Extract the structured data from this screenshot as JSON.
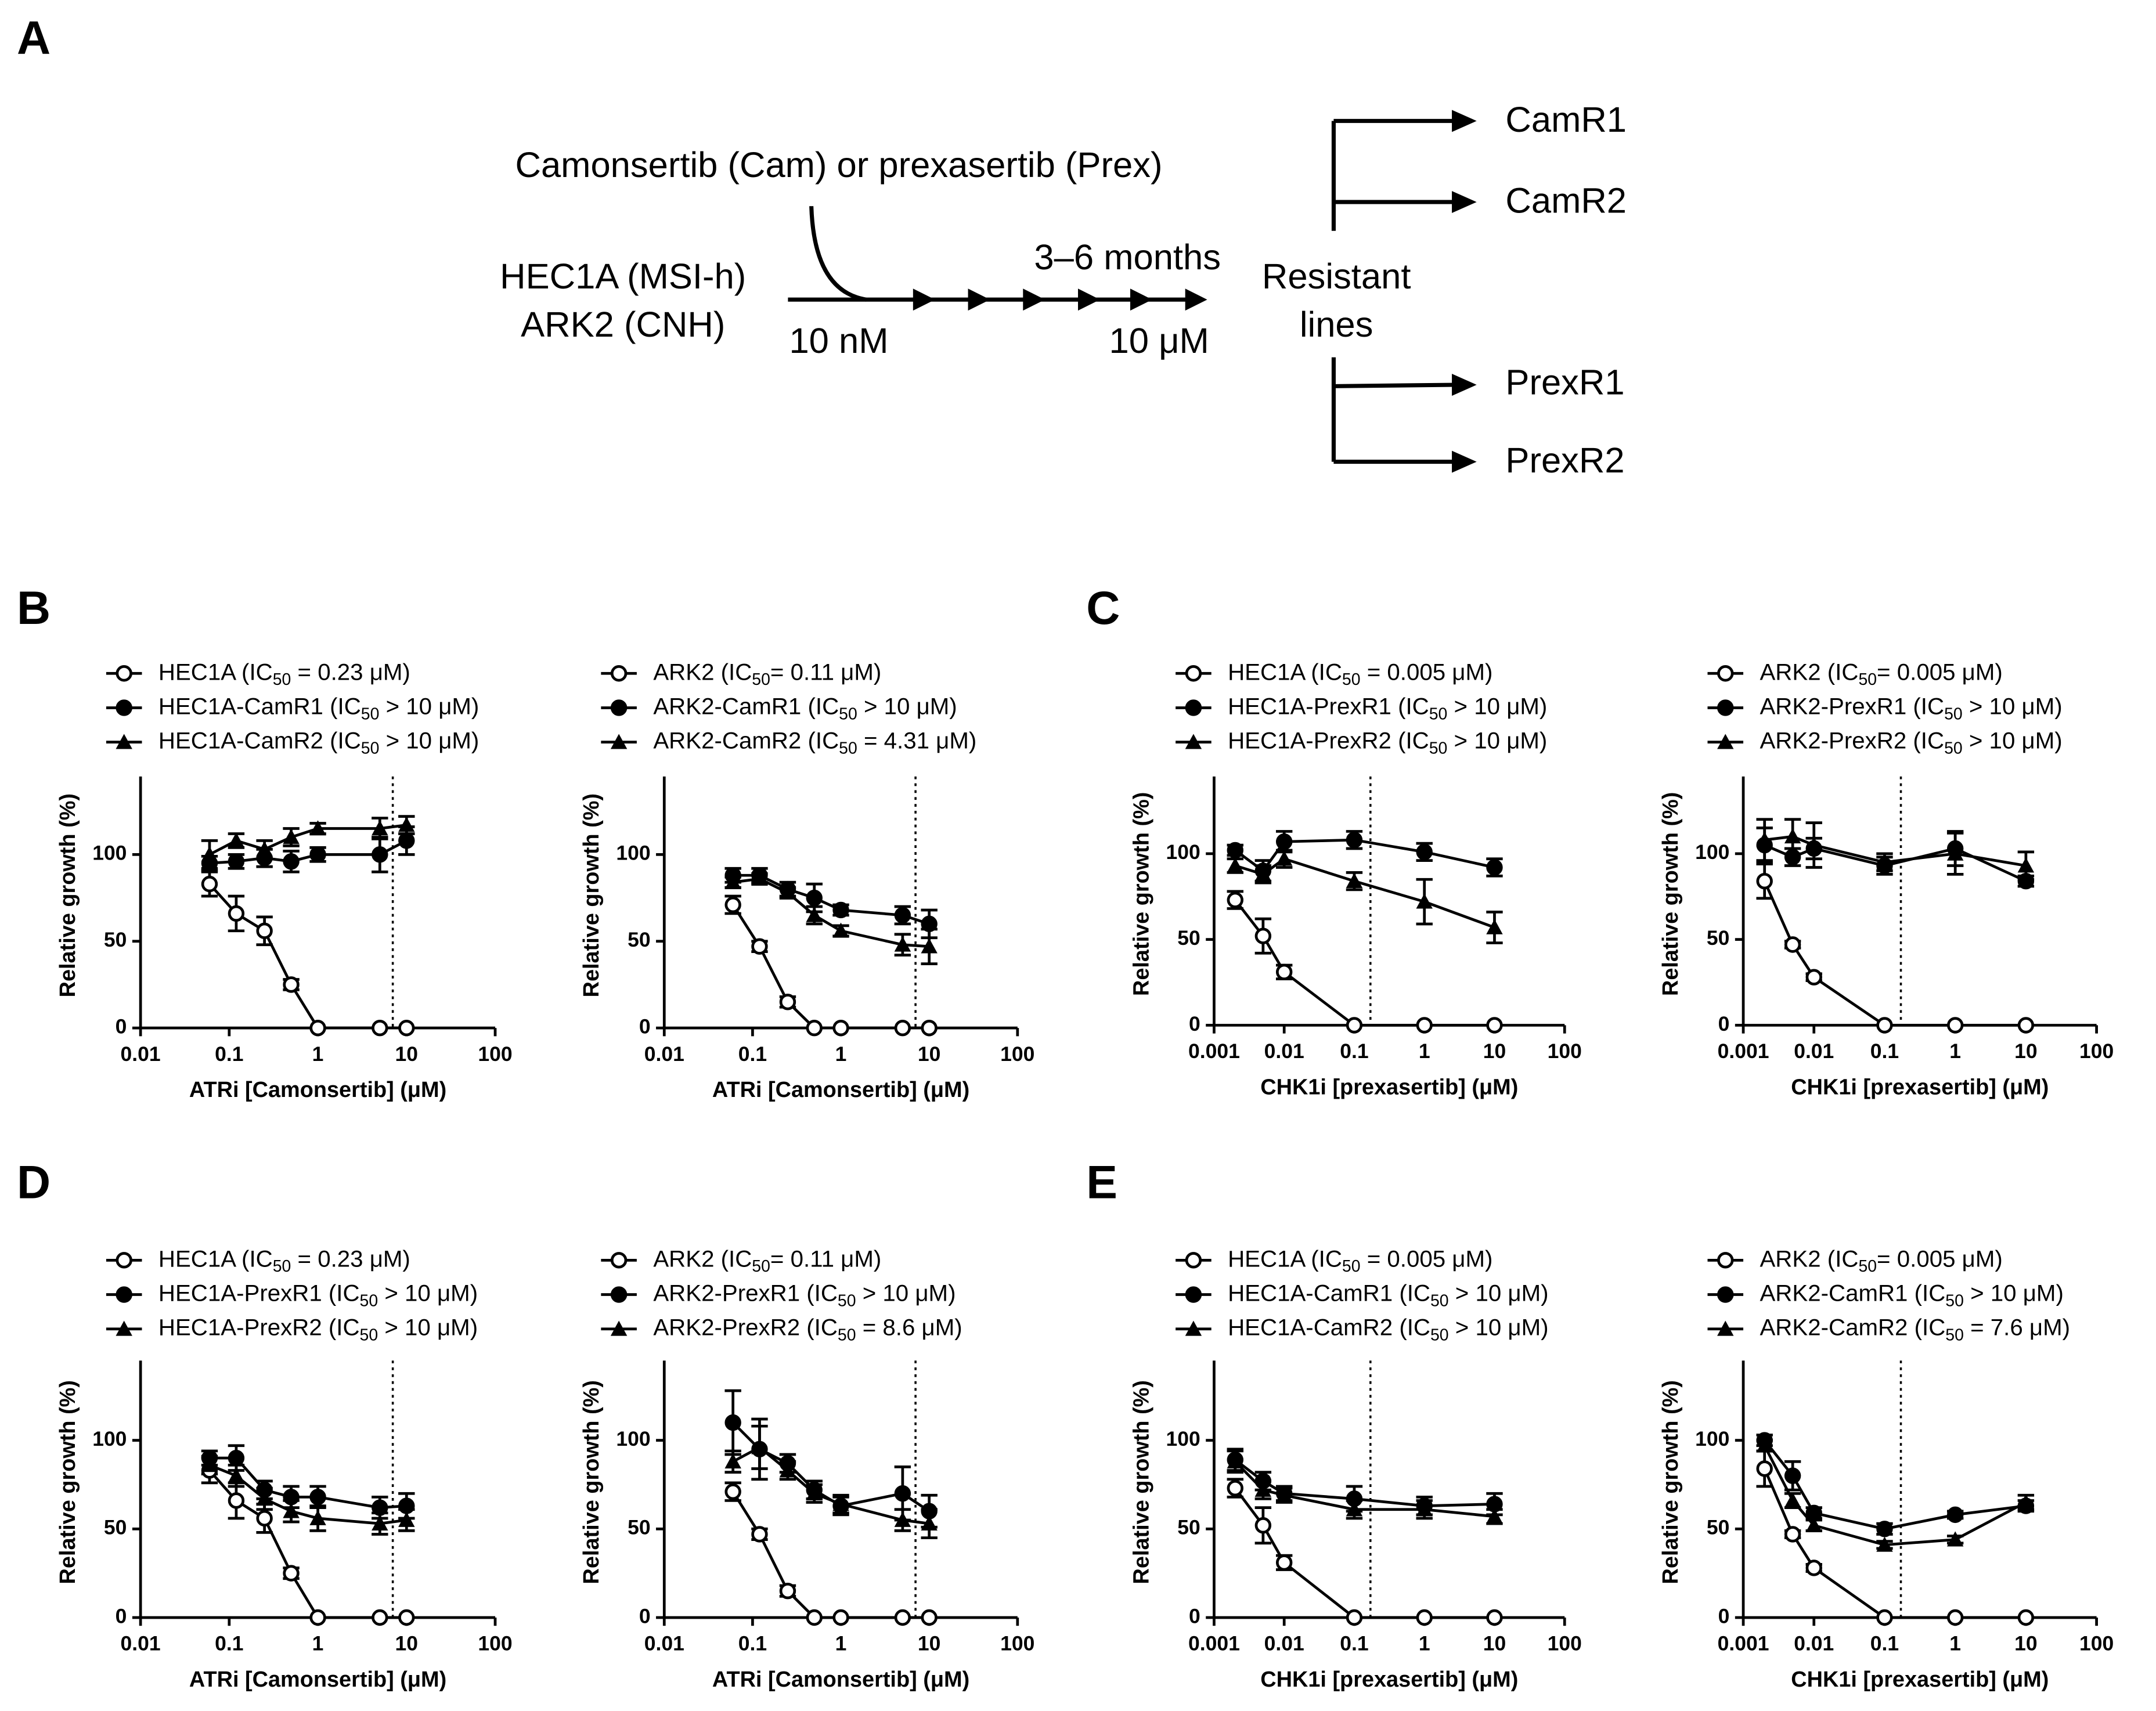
{
  "panel_labels": [
    "A",
    "B",
    "C",
    "D",
    "E"
  ],
  "diagram": {
    "treatment": "Camonsertib (Cam) or prexasertib (Prex)",
    "parental_lines": [
      "HEC1A (MSI-h)",
      "ARK2 (CNH)"
    ],
    "start_dose": "10 nM",
    "duration": "3–6 months",
    "end_dose": "10 μM",
    "outcome": [
      "Resistant",
      "lines"
    ],
    "resistant_lines": [
      "CamR1",
      "CamR2",
      "PrexR1",
      "PrexR2"
    ]
  },
  "chart_data": [
    {
      "type": "line",
      "x_label": "ATRi [Camonsertib] (μM)",
      "y_label": "Relative growth (%)",
      "log_x": true,
      "xlim": [
        0.01,
        100
      ],
      "xticks": [
        0.01,
        0.1,
        1,
        10,
        100
      ],
      "ylim": [
        0,
        145
      ],
      "yticks": [
        0,
        50,
        100
      ],
      "vline": 7,
      "x": [
        0.06,
        0.12,
        0.25,
        0.5,
        1,
        5,
        10
      ],
      "series": [
        {
          "name": "HEC1A (IC50 = 0.23 μM)",
          "marker": "open-circle",
          "color": "#000000",
          "values": [
            83,
            66,
            56,
            25,
            0,
            0,
            0
          ],
          "errors": [
            7,
            10,
            8,
            3,
            0,
            0,
            0
          ]
        },
        {
          "name": "HEC1A-CamR1 (IC50  > 10 μM)",
          "marker": "filled-circle",
          "color": "#000000",
          "values": [
            95,
            96,
            98,
            96,
            100,
            100,
            108
          ],
          "errors": [
            4,
            4,
            5,
            6,
            4,
            10,
            8
          ]
        },
        {
          "name": "HEC1A-CamR2 (IC50  > 10 μM)",
          "marker": "filled-triangle",
          "color": "#000000",
          "values": [
            100,
            108,
            103,
            110,
            115,
            115,
            117
          ],
          "errors": [
            8,
            4,
            5,
            5,
            3,
            6,
            5
          ]
        }
      ]
    },
    {
      "type": "line",
      "x_label": "ATRi [Camonsertib] (μM)",
      "y_label": "Relative growth (%)",
      "log_x": true,
      "xlim": [
        0.01,
        100
      ],
      "xticks": [
        0.01,
        0.1,
        1,
        10,
        100
      ],
      "ylim": [
        0,
        145
      ],
      "yticks": [
        0,
        50,
        100
      ],
      "vline": 7,
      "x": [
        0.06,
        0.12,
        0.25,
        0.5,
        1,
        5,
        10
      ],
      "series": [
        {
          "name": "ARK2 (IC50= 0.11 μM)",
          "marker": "open-circle",
          "color": "#000000",
          "values": [
            71,
            47,
            15,
            0,
            0,
            0,
            0
          ],
          "errors": [
            5,
            3,
            3,
            0,
            0,
            0,
            0
          ]
        },
        {
          "name": "ARK2-CamR1 (IC50  > 10 μM)",
          "marker": "filled-circle",
          "color": "#000000",
          "values": [
            88,
            88,
            80,
            75,
            68,
            65,
            60
          ],
          "errors": [
            4,
            4,
            4,
            8,
            3,
            5,
            8
          ]
        },
        {
          "name": "ARK2-CamR2 (IC50  =  4.31 μM)",
          "marker": "filled-triangle",
          "color": "#000000",
          "values": [
            84,
            86,
            78,
            65,
            56,
            48,
            47
          ],
          "errors": [
            3,
            3,
            3,
            5,
            3,
            6,
            10
          ]
        }
      ]
    },
    {
      "type": "line",
      "x_label": "CHK1i [prexasertib] (μM)",
      "y_label": "Relative growth (%)",
      "log_x": true,
      "xlim": [
        0.001,
        100
      ],
      "xticks": [
        0.001,
        0.01,
        0.1,
        1,
        10,
        100
      ],
      "ylim": [
        0,
        145
      ],
      "yticks": [
        0,
        50,
        100
      ],
      "vline": 0.17,
      "x": [
        0.002,
        0.005,
        0.01,
        0.1,
        1,
        10
      ],
      "series": [
        {
          "name": "HEC1A (IC50 = 0.005 μM)",
          "marker": "open-circle",
          "color": "#000000",
          "values": [
            73,
            52,
            31,
            0,
            0,
            0
          ],
          "errors": [
            5,
            10,
            4,
            0,
            0,
            0
          ]
        },
        {
          "name": "HEC1A-PrexR1 (IC50  > 10 μM)",
          "marker": "filled-circle",
          "color": "#000000",
          "values": [
            102,
            90,
            107,
            108,
            101,
            92
          ],
          "errors": [
            3,
            6,
            6,
            5,
            5,
            5
          ]
        },
        {
          "name": "HEC1A-PrexR2 (IC50  > 10 μM)",
          "marker": "filled-triangle",
          "color": "#000000",
          "values": [
            93,
            88,
            97,
            84,
            72,
            57
          ],
          "errors": [
            4,
            5,
            5,
            5,
            13,
            9
          ]
        }
      ]
    },
    {
      "type": "line",
      "x_label": "CHK1i [prexasertib] (μM)",
      "y_label": "Relative growth (%)",
      "log_x": true,
      "xlim": [
        0.001,
        100
      ],
      "xticks": [
        0.001,
        0.01,
        0.1,
        1,
        10,
        100
      ],
      "ylim": [
        0,
        145
      ],
      "yticks": [
        0,
        50,
        100
      ],
      "vline": 0.17,
      "x": [
        0.002,
        0.005,
        0.01,
        0.1,
        1,
        10
      ],
      "series": [
        {
          "name": "ARK2 (IC50= 0.005 μM)",
          "marker": "open-circle",
          "color": "#000000",
          "values": [
            84,
            47,
            28,
            0,
            0,
            0
          ],
          "errors": [
            10,
            2,
            2,
            0,
            0,
            0
          ]
        },
        {
          "name": "ARK2-PrexR1 (IC50  > 10 μM)",
          "marker": "filled-circle",
          "color": "#000000",
          "values": [
            105,
            98,
            103,
            93,
            103,
            84
          ],
          "errors": [
            10,
            5,
            6,
            5,
            10,
            3
          ]
        },
        {
          "name": "ARK2-PrexR2 (IC50  > 10 μM)",
          "marker": "filled-triangle",
          "color": "#000000",
          "values": [
            108,
            110,
            105,
            95,
            100,
            93
          ],
          "errors": [
            12,
            10,
            13,
            5,
            12,
            8
          ]
        }
      ]
    },
    {
      "type": "line",
      "x_label": "ATRi [Camonsertib] (μM)",
      "y_label": "Relative growth (%)",
      "log_x": true,
      "xlim": [
        0.01,
        100
      ],
      "xticks": [
        0.01,
        0.1,
        1,
        10,
        100
      ],
      "ylim": [
        0,
        145
      ],
      "yticks": [
        0,
        50,
        100
      ],
      "vline": 7,
      "x": [
        0.06,
        0.12,
        0.25,
        0.5,
        1,
        5,
        10
      ],
      "series": [
        {
          "name": "HEC1A (IC50 = 0.23 μM)",
          "marker": "open-circle",
          "color": "#000000",
          "values": [
            83,
            66,
            56,
            25,
            0,
            0,
            0
          ],
          "errors": [
            7,
            10,
            8,
            3,
            0,
            0,
            0
          ]
        },
        {
          "name": "HEC1A-PrexR1 (IC50  > 10 μM)",
          "marker": "filled-circle",
          "color": "#000000",
          "values": [
            90,
            90,
            72,
            68,
            68,
            62,
            63
          ],
          "errors": [
            4,
            7,
            5,
            6,
            6,
            6,
            7
          ]
        },
        {
          "name": "HEC1A-PrexR2 (IC50  > 10 μM)",
          "marker": "filled-triangle",
          "color": "#000000",
          "values": [
            86,
            80,
            67,
            60,
            56,
            53,
            55
          ],
          "errors": [
            5,
            6,
            6,
            6,
            7,
            6,
            6
          ]
        }
      ]
    },
    {
      "type": "line",
      "x_label": "ATRi [Camonsertib] (μM)",
      "y_label": "Relative growth (%)",
      "log_x": true,
      "xlim": [
        0.01,
        100
      ],
      "xticks": [
        0.01,
        0.1,
        1,
        10,
        100
      ],
      "ylim": [
        0,
        145
      ],
      "yticks": [
        0,
        50,
        100
      ],
      "vline": 7,
      "x": [
        0.06,
        0.12,
        0.25,
        0.5,
        1,
        5,
        10
      ],
      "series": [
        {
          "name": "ARK2 (IC50= 0.11 μM)",
          "marker": "open-circle",
          "color": "#000000",
          "values": [
            71,
            47,
            15,
            0,
            0,
            0,
            0
          ],
          "errors": [
            5,
            3,
            3,
            0,
            0,
            0,
            0
          ]
        },
        {
          "name": "ARK2-PrexR1 (IC50 > 10 μM)",
          "marker": "filled-circle",
          "color": "#000000",
          "values": [
            110,
            95,
            87,
            72,
            63,
            70,
            60
          ],
          "errors": [
            18,
            17,
            5,
            5,
            5,
            15,
            9
          ]
        },
        {
          "name": "ARK2-PrexR2 (IC50  = 8.6 μM)",
          "marker": "filled-triangle",
          "color": "#000000",
          "values": [
            88,
            96,
            83,
            70,
            64,
            55,
            53
          ],
          "errors": [
            6,
            12,
            5,
            5,
            5,
            6,
            8
          ]
        }
      ]
    },
    {
      "type": "line",
      "x_label": "CHK1i [prexasertib] (μM)",
      "y_label": "Relative growth (%)",
      "log_x": true,
      "xlim": [
        0.001,
        100
      ],
      "xticks": [
        0.001,
        0.01,
        0.1,
        1,
        10,
        100
      ],
      "ylim": [
        0,
        145
      ],
      "yticks": [
        0,
        50,
        100
      ],
      "vline": 0.17,
      "x": [
        0.002,
        0.005,
        0.01,
        0.1,
        1,
        10
      ],
      "series": [
        {
          "name": "HEC1A (IC50 = 0.005 μM)",
          "marker": "open-circle",
          "color": "#000000",
          "values": [
            73,
            52,
            31,
            0,
            0,
            0
          ],
          "errors": [
            5,
            10,
            4,
            0,
            0,
            0
          ]
        },
        {
          "name": "HEC1A-CamR1 (IC50  > 10 μM)",
          "marker": "filled-circle",
          "color": "#000000",
          "values": [
            89,
            77,
            70,
            67,
            63,
            64
          ],
          "errors": [
            6,
            5,
            4,
            7,
            5,
            6
          ]
        },
        {
          "name": "HEC1A-CamR2 (IC50  > 10 μM)",
          "marker": "filled-triangle",
          "color": "#000000",
          "values": [
            88,
            72,
            69,
            61,
            61,
            57
          ],
          "errors": [
            6,
            5,
            4,
            5,
            5,
            4
          ]
        }
      ]
    },
    {
      "type": "line",
      "x_label": "CHK1i [prexasertib] (μM)",
      "y_label": "Relative growth (%)",
      "log_x": true,
      "xlim": [
        0.001,
        100
      ],
      "xticks": [
        0.001,
        0.01,
        0.1,
        1,
        10,
        100
      ],
      "ylim": [
        0,
        145
      ],
      "yticks": [
        0,
        50,
        100
      ],
      "vline": 0.17,
      "x": [
        0.002,
        0.005,
        0.01,
        0.1,
        1,
        10
      ],
      "series": [
        {
          "name": "ARK2 (IC50= 0.005 μM)",
          "marker": "open-circle",
          "color": "#000000",
          "values": [
            84,
            47,
            28,
            0,
            0,
            0
          ],
          "errors": [
            10,
            2,
            2,
            0,
            0,
            0
          ]
        },
        {
          "name": "ARK2-CamR1 (IC50  > 10 μM)",
          "marker": "filled-circle",
          "color": "#000000",
          "values": [
            100,
            80,
            59,
            50,
            58,
            63
          ],
          "errors": [
            3,
            8,
            3,
            3,
            2,
            3
          ]
        },
        {
          "name": "ARK2-CamR2 (IC50  =  7.6 μM)",
          "marker": "filled-triangle",
          "color": "#000000",
          "values": [
            97,
            66,
            52,
            41,
            44,
            65
          ],
          "errors": [
            3,
            4,
            3,
            2,
            2,
            4
          ]
        }
      ]
    }
  ]
}
